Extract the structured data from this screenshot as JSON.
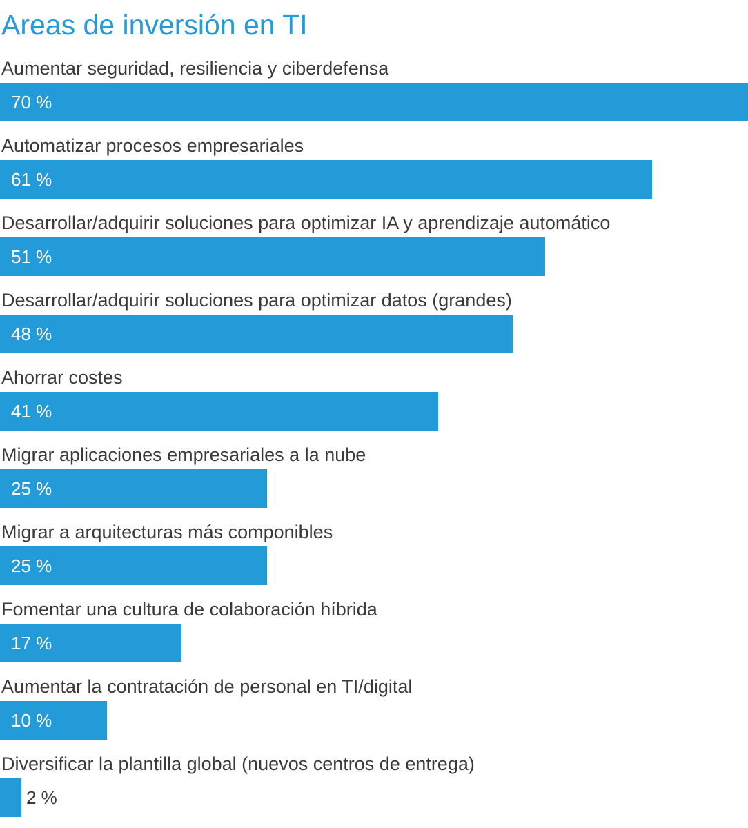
{
  "colors": {
    "bar": "#229bd8",
    "title": "#229bd8",
    "label": "#3a3a3a",
    "value_inside": "#ffffff",
    "value_outside": "#3a3a3a"
  },
  "chart_data": {
    "type": "bar",
    "orientation": "horizontal",
    "title": "Areas de inversión en TI",
    "xlabel": "",
    "ylabel": "",
    "xlim": [
      0,
      70
    ],
    "grid": false,
    "legend": "none",
    "unit": "%",
    "categories": [
      "Aumentar seguridad, resiliencia y ciberdefensa",
      "Automatizar procesos empresariales",
      "Desarrollar/adquirir soluciones para optimizar IA y aprendizaje automático",
      "Desarrollar/adquirir soluciones para optimizar datos (grandes)",
      "Ahorrar costes",
      "Migrar aplicaciones empresariales a la nube",
      "Migrar a arquitecturas más componibles",
      "Fomentar una cultura de colaboración híbrida",
      "Aumentar la contratación de personal en TI/digital",
      "Diversificar la plantilla global (nuevos centros de entrega)"
    ],
    "values": [
      70,
      61,
      51,
      48,
      41,
      25,
      25,
      17,
      10,
      2
    ],
    "value_labels": [
      "70 %",
      "61 %",
      "51 %",
      "48 %",
      "41 %",
      "25 %",
      "25 %",
      "17 %",
      "10 %",
      "2 %"
    ]
  }
}
